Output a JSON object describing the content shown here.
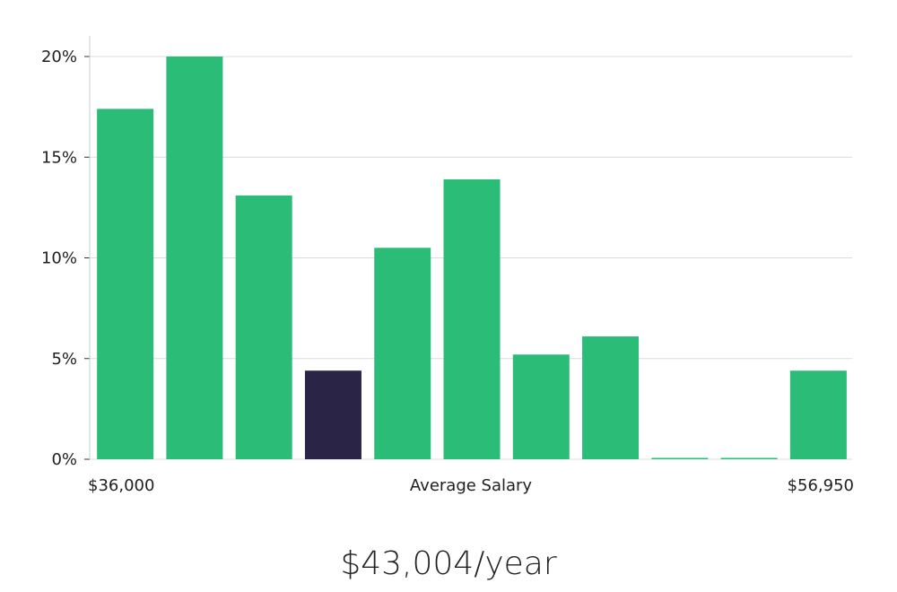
{
  "chart_data": {
    "type": "bar",
    "bins": 11,
    "values": [
      17.4,
      20.0,
      13.1,
      4.4,
      10.5,
      13.9,
      5.2,
      6.1,
      0,
      0,
      4.4
    ],
    "highlight_index": 3,
    "ylim": [
      0,
      20
    ],
    "yticks": [
      0,
      5,
      10,
      15,
      20
    ],
    "ytick_labels": [
      "0%",
      "5%",
      "10%",
      "15%",
      "20%"
    ],
    "x_min_label": "$36,000",
    "x_max_label": "$56,950",
    "xlabel": "Average Salary",
    "grid": true,
    "colors": {
      "bar": "#2bbd77",
      "highlight": "#2a2547",
      "grid": "#dcdcdc",
      "axis": "#cccccc"
    }
  },
  "summary": {
    "value_text": "$43,004/year"
  }
}
